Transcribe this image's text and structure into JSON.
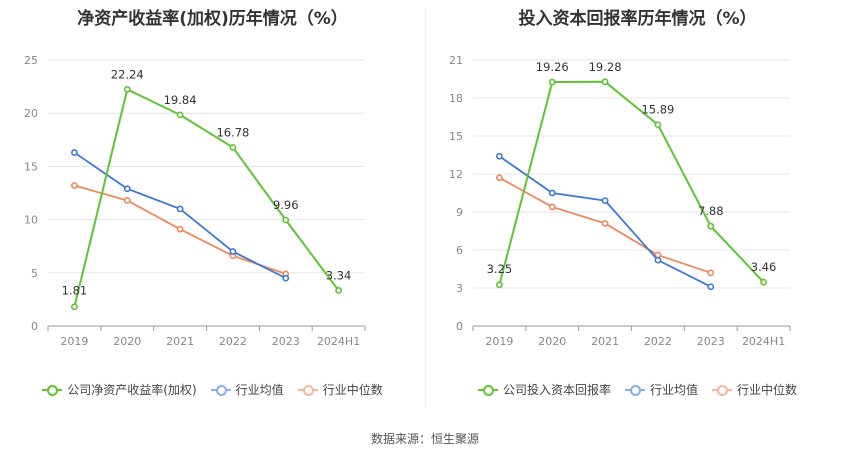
{
  "source_prefix": "数据来源：",
  "source_name": "恒生聚源",
  "colors": {
    "company": "#5ec432",
    "avg": "#3a78d8",
    "median": "#f0885a"
  },
  "chart_data": [
    {
      "type": "line",
      "title": "净资产收益率(加权)历年情况（%）",
      "categories": [
        "2019",
        "2020",
        "2021",
        "2022",
        "2023",
        "2024H1"
      ],
      "yticks": [
        "0",
        "5",
        "10",
        "15",
        "20",
        "25"
      ],
      "ylim": [
        0,
        25
      ],
      "grid": true,
      "legend_position": "bottom",
      "series": [
        {
          "name": "公司净资产收益率(加权)",
          "key": "company",
          "values": [
            1.81,
            22.24,
            19.84,
            16.78,
            9.96,
            3.34
          ],
          "labels": [
            "1.81",
            "22.24",
            "19.84",
            "16.78",
            "9.96",
            "3.34"
          ]
        },
        {
          "name": "行业均值",
          "key": "avg",
          "values": [
            16.3,
            12.9,
            11.0,
            7.0,
            4.5,
            null
          ]
        },
        {
          "name": "行业中位数",
          "key": "median",
          "values": [
            13.2,
            11.8,
            9.1,
            6.6,
            4.9,
            null
          ]
        }
      ]
    },
    {
      "type": "line",
      "title": "投入资本回报率历年情况（%）",
      "categories": [
        "2019",
        "2020",
        "2021",
        "2022",
        "2023",
        "2024H1"
      ],
      "yticks": [
        "0",
        "3",
        "6",
        "9",
        "12",
        "15",
        "18",
        "21"
      ],
      "ylim": [
        0,
        21
      ],
      "grid": true,
      "legend_position": "bottom",
      "series": [
        {
          "name": "公司投入资本回报率",
          "key": "company",
          "values": [
            3.25,
            19.26,
            19.28,
            15.89,
            7.88,
            3.46
          ],
          "labels": [
            "3.25",
            "19.26",
            "19.28",
            "15.89",
            "7.88",
            "3.46"
          ]
        },
        {
          "name": "行业均值",
          "key": "avg",
          "values": [
            13.4,
            10.5,
            9.9,
            5.2,
            3.1,
            null
          ]
        },
        {
          "name": "行业中位数",
          "key": "median",
          "values": [
            11.7,
            9.4,
            8.1,
            5.6,
            4.2,
            null
          ]
        }
      ]
    }
  ]
}
